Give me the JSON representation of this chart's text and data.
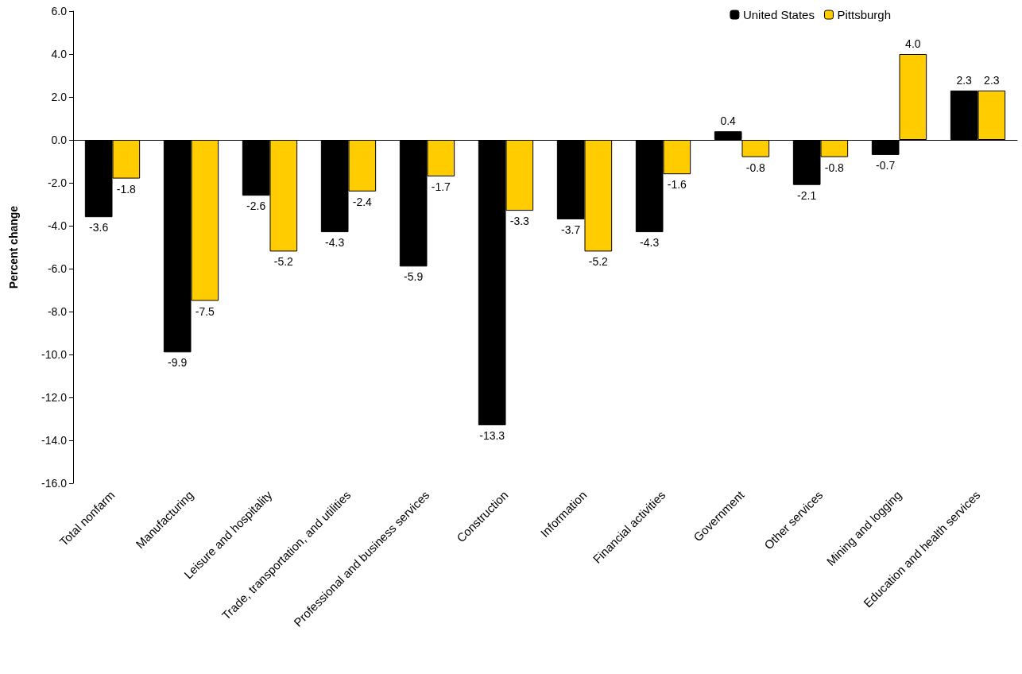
{
  "chart_data": {
    "type": "bar",
    "ylabel": "Percent change",
    "categories": [
      "Total nonfarm",
      "Manufacturing",
      "Leisure and hospitality",
      "Trade, transportation, and utilities",
      "Professional and business services",
      "Construction",
      "Information",
      "Financial activities",
      "Government",
      "Other services",
      "Mining and logging",
      "Education and health services"
    ],
    "series": [
      {
        "name": "United States",
        "color": "#000000",
        "values": [
          -3.6,
          -9.9,
          -2.6,
          -4.3,
          -5.9,
          -13.3,
          -3.7,
          -4.3,
          0.4,
          -2.1,
          -0.7,
          2.3
        ],
        "value_labels": [
          "-3.6",
          "-9.9",
          "-2.6",
          "-4.3",
          "-5.9",
          "-13.3",
          "-3.7",
          "-4.3",
          "0.4",
          "-2.1",
          "-0.7",
          "2.3"
        ]
      },
      {
        "name": "Pittsburgh",
        "color": "#ffcc00",
        "values": [
          -1.8,
          -7.5,
          -5.2,
          -2.4,
          -1.7,
          -3.3,
          -5.2,
          -1.6,
          -0.8,
          -0.8,
          4.0,
          2.3
        ],
        "value_labels": [
          "-1.8",
          "-7.5",
          "-5.2",
          "-2.4",
          "-1.7",
          "-3.3",
          "-5.2",
          "-1.6",
          "-0.8",
          "-0.8",
          "4.0",
          "2.3"
        ]
      }
    ],
    "ylim": [
      -16,
      6
    ],
    "yticks": [
      {
        "value": -16,
        "label": "-16.0"
      },
      {
        "value": -14,
        "label": "-14.0"
      },
      {
        "value": -12,
        "label": "-12.0"
      },
      {
        "value": -10,
        "label": "-10.0"
      },
      {
        "value": -8,
        "label": "-8.0"
      },
      {
        "value": -6,
        "label": "-6.0"
      },
      {
        "value": -4,
        "label": "-4.0"
      },
      {
        "value": -2,
        "label": "-2.0"
      },
      {
        "value": 0,
        "label": "0.0"
      },
      {
        "value": 2,
        "label": "2.0"
      },
      {
        "value": 4,
        "label": "4.0"
      },
      {
        "value": 6,
        "label": "6.0"
      }
    ],
    "legend": "top right"
  }
}
